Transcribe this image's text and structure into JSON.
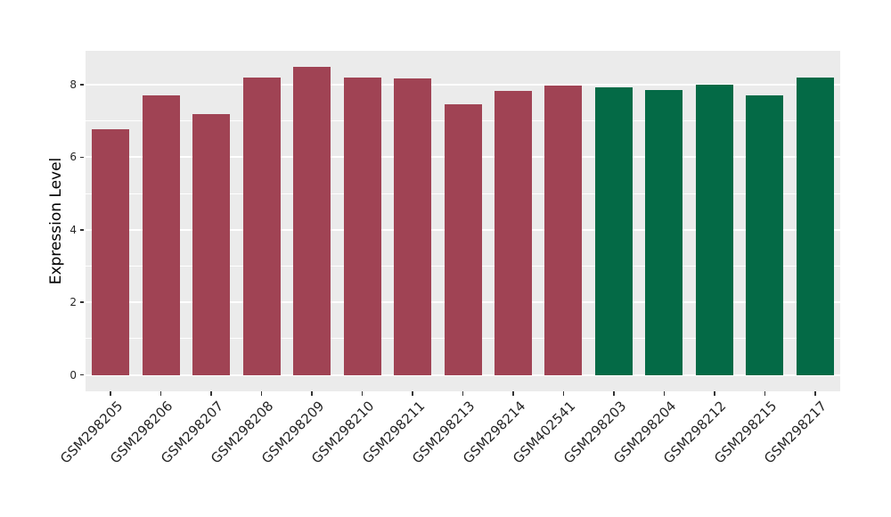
{
  "chart_data": {
    "type": "bar",
    "title": "",
    "xlabel": "",
    "ylabel": "Expression Level",
    "categories": [
      "GSM298205",
      "GSM298206",
      "GSM298207",
      "GSM298208",
      "GSM298209",
      "GSM298210",
      "GSM298211",
      "GSM298213",
      "GSM298214",
      "GSM402541",
      "GSM298203",
      "GSM298204",
      "GSM298212",
      "GSM298215",
      "GSM298217"
    ],
    "values": [
      6.78,
      7.7,
      7.19,
      8.19,
      8.5,
      8.2,
      8.17,
      7.46,
      7.82,
      7.97,
      7.92,
      7.84,
      8.0,
      7.7,
      8.19
    ],
    "groups": [
      "maroon",
      "maroon",
      "maroon",
      "maroon",
      "maroon",
      "maroon",
      "maroon",
      "maroon",
      "maroon",
      "maroon",
      "green",
      "green",
      "green",
      "green",
      "green"
    ],
    "group_colors": {
      "maroon": "#A04354",
      "green": "#046A46"
    },
    "y_ticks": [
      0,
      2,
      4,
      6,
      8
    ],
    "y_tick_labels": [
      "0",
      "2",
      "4",
      "6",
      "8"
    ],
    "y_minor_ticks": [
      1,
      3,
      5,
      7
    ],
    "ylim": [
      -0.45,
      8.93
    ],
    "grid": true,
    "legend": false,
    "legend_position": "none",
    "panel_bg": "#EBEBEB",
    "grid_major_color": "#FFFFFF",
    "grid_minor_color": "#FFFFFF",
    "axis_text_color": "#262626",
    "tick_color": "#333333"
  }
}
